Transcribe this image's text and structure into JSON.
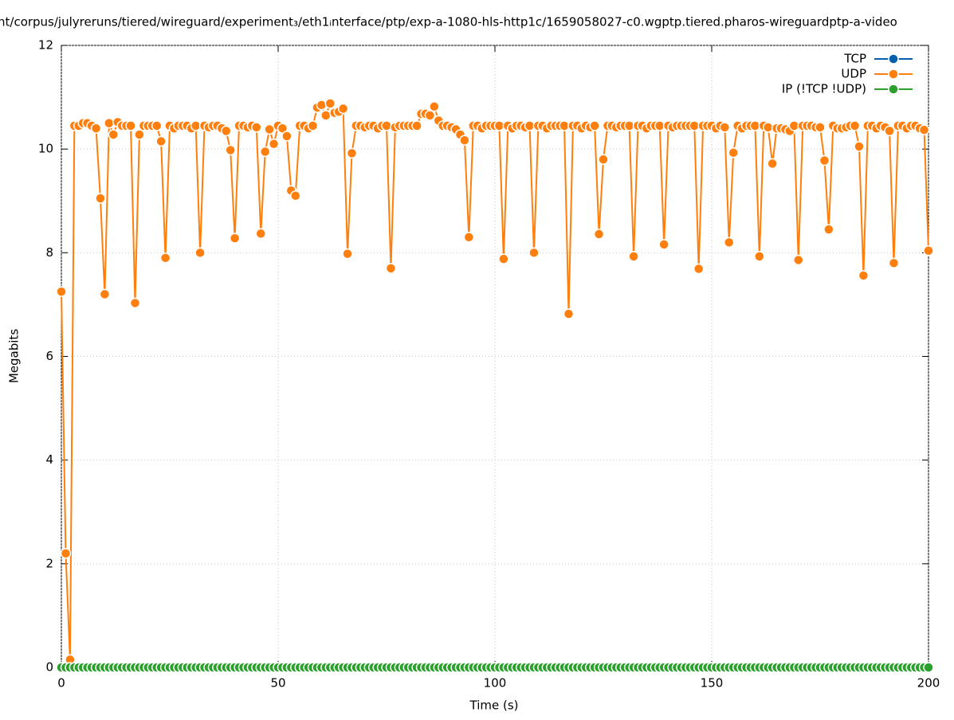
{
  "chart_data": {
    "type": "line",
    "title": "nt/corpus/julyreruns/tiered/wireguard/experiment₃/eth1ᵢnterface/ptp/exp-a-1080-hls-http1c/1659058027-c0.wgptp.tiered.pharos-wireguardptp-a-video",
    "x_label": "Time (s)",
    "y_label": "Megabits",
    "xlim": [
      0,
      200
    ],
    "xticks": [
      0,
      50,
      100,
      150,
      200
    ],
    "ylim": [
      0,
      12
    ],
    "yticks": [
      0,
      2,
      4,
      6,
      8,
      10,
      12
    ],
    "grid": true,
    "legend": "top-right",
    "x": [
      0,
      1,
      2,
      3,
      4,
      5,
      6,
      7,
      8,
      9,
      10,
      11,
      12,
      13,
      14,
      15,
      16,
      17,
      18,
      19,
      20,
      21,
      22,
      23,
      24,
      25,
      26,
      27,
      28,
      29,
      30,
      31,
      32,
      33,
      34,
      35,
      36,
      37,
      38,
      39,
      40,
      41,
      42,
      43,
      44,
      45,
      46,
      47,
      48,
      49,
      50,
      51,
      52,
      53,
      54,
      55,
      56,
      57,
      58,
      59,
      60,
      61,
      62,
      63,
      64,
      65,
      66,
      67,
      68,
      69,
      70,
      71,
      72,
      73,
      74,
      75,
      76,
      77,
      78,
      79,
      80,
      81,
      82,
      83,
      84,
      85,
      86,
      87,
      88,
      89,
      90,
      91,
      92,
      93,
      94,
      95,
      96,
      97,
      98,
      99,
      100,
      101,
      102,
      103,
      104,
      105,
      106,
      107,
      108,
      109,
      110,
      111,
      112,
      113,
      114,
      115,
      116,
      117,
      118,
      119,
      120,
      121,
      122,
      123,
      124,
      125,
      126,
      127,
      128,
      129,
      130,
      131,
      132,
      133,
      134,
      135,
      136,
      137,
      138,
      139,
      140,
      141,
      142,
      143,
      144,
      145,
      146,
      147,
      148,
      149,
      150,
      151,
      152,
      153,
      154,
      155,
      156,
      157,
      158,
      159,
      160,
      161,
      162,
      163,
      164,
      165,
      166,
      167,
      168,
      169,
      170,
      171,
      172,
      173,
      174,
      175,
      176,
      177,
      178,
      179,
      180,
      181,
      182,
      183,
      184,
      185,
      186,
      187,
      188,
      189,
      190,
      191,
      192,
      193,
      194,
      195,
      196,
      197,
      198,
      199,
      200
    ],
    "series": [
      {
        "name": "TCP",
        "color": "#0060ad",
        "values": [
          0,
          0,
          0,
          0,
          0,
          0,
          0,
          0,
          0,
          0,
          0,
          0,
          0,
          0,
          0,
          0,
          0,
          0,
          0,
          0,
          0,
          0,
          0,
          0,
          0,
          0,
          0,
          0,
          0,
          0,
          0,
          0,
          0,
          0,
          0,
          0,
          0,
          0,
          0,
          0,
          0,
          0,
          0,
          0,
          0,
          0,
          0,
          0,
          0,
          0,
          0,
          0,
          0,
          0,
          0,
          0,
          0,
          0,
          0,
          0,
          0,
          0,
          0,
          0,
          0,
          0,
          0,
          0,
          0,
          0,
          0,
          0,
          0,
          0,
          0,
          0,
          0,
          0,
          0,
          0,
          0,
          0,
          0,
          0,
          0,
          0,
          0,
          0,
          0,
          0,
          0,
          0,
          0,
          0,
          0,
          0,
          0,
          0,
          0,
          0,
          0,
          0,
          0,
          0,
          0,
          0,
          0,
          0,
          0,
          0,
          0,
          0,
          0,
          0,
          0,
          0,
          0,
          0,
          0,
          0,
          0,
          0,
          0,
          0,
          0,
          0,
          0,
          0,
          0,
          0,
          0,
          0,
          0,
          0,
          0,
          0,
          0,
          0,
          0,
          0,
          0,
          0,
          0,
          0,
          0,
          0,
          0,
          0,
          0,
          0,
          0,
          0,
          0,
          0,
          0,
          0,
          0,
          0,
          0,
          0,
          0,
          0,
          0,
          0,
          0,
          0,
          0,
          0,
          0,
          0,
          0,
          0,
          0,
          0,
          0,
          0,
          0,
          0,
          0,
          0,
          0,
          0,
          0,
          0,
          0,
          0,
          0,
          0,
          0,
          0,
          0,
          0,
          0,
          0,
          0,
          0,
          0,
          0,
          0,
          0,
          0
        ]
      },
      {
        "name": "UDP",
        "color": "#ff7f0e",
        "values": [
          7.25,
          2.2,
          0.15,
          10.45,
          10.45,
          10.5,
          10.5,
          10.45,
          10.4,
          9.05,
          7.2,
          10.5,
          10.28,
          10.52,
          10.45,
          10.45,
          10.45,
          7.03,
          10.28,
          10.45,
          10.45,
          10.45,
          10.45,
          10.15,
          7.9,
          10.45,
          10.4,
          10.45,
          10.45,
          10.45,
          10.4,
          10.45,
          8.0,
          10.45,
          10.42,
          10.45,
          10.45,
          10.4,
          10.35,
          9.98,
          8.28,
          10.45,
          10.45,
          10.42,
          10.45,
          10.42,
          8.37,
          9.95,
          10.38,
          10.1,
          10.45,
          10.4,
          10.25,
          9.2,
          9.1,
          10.45,
          10.45,
          10.4,
          10.45,
          10.8,
          10.85,
          10.65,
          10.88,
          10.7,
          10.72,
          10.78,
          7.98,
          9.92,
          10.45,
          10.45,
          10.42,
          10.45,
          10.45,
          10.4,
          10.45,
          10.45,
          7.7,
          10.42,
          10.45,
          10.45,
          10.45,
          10.45,
          10.45,
          10.68,
          10.68,
          10.65,
          10.82,
          10.55,
          10.45,
          10.45,
          10.42,
          10.38,
          10.28,
          10.17,
          8.3,
          10.45,
          10.45,
          10.4,
          10.45,
          10.45,
          10.45,
          10.45,
          7.88,
          10.45,
          10.4,
          10.45,
          10.45,
          10.42,
          10.45,
          8.0,
          10.45,
          10.45,
          10.4,
          10.45,
          10.45,
          10.45,
          10.45,
          6.82,
          10.45,
          10.45,
          10.4,
          10.45,
          10.42,
          10.45,
          8.36,
          9.8,
          10.45,
          10.45,
          10.42,
          10.45,
          10.45,
          10.45,
          7.93,
          10.45,
          10.45,
          10.4,
          10.45,
          10.45,
          10.45,
          8.16,
          10.45,
          10.42,
          10.45,
          10.45,
          10.45,
          10.45,
          10.45,
          7.69,
          10.45,
          10.45,
          10.45,
          10.4,
          10.45,
          10.42,
          8.2,
          9.93,
          10.45,
          10.4,
          10.45,
          10.45,
          10.45,
          7.93,
          10.45,
          10.42,
          9.72,
          10.4,
          10.4,
          10.38,
          10.35,
          10.45,
          7.86,
          10.45,
          10.45,
          10.45,
          10.42,
          10.42,
          9.78,
          8.45,
          10.45,
          10.4,
          10.4,
          10.42,
          10.45,
          10.45,
          10.05,
          7.56,
          10.45,
          10.45,
          10.4,
          10.45,
          10.42,
          10.35,
          7.8,
          10.45,
          10.45,
          10.4,
          10.45,
          10.45,
          10.4,
          10.37,
          8.04
        ]
      },
      {
        "name": "IP (!TCP  !UDP)",
        "color": "#2ca02c",
        "values": [
          0,
          0,
          0,
          0,
          0,
          0,
          0,
          0,
          0,
          0,
          0,
          0,
          0,
          0,
          0,
          0,
          0,
          0,
          0,
          0,
          0,
          0,
          0,
          0,
          0,
          0,
          0,
          0,
          0,
          0,
          0,
          0,
          0,
          0,
          0,
          0,
          0,
          0,
          0,
          0,
          0,
          0,
          0,
          0,
          0,
          0,
          0,
          0,
          0,
          0,
          0,
          0,
          0,
          0,
          0,
          0,
          0,
          0,
          0,
          0,
          0,
          0,
          0,
          0,
          0,
          0,
          0,
          0,
          0,
          0,
          0,
          0,
          0,
          0,
          0,
          0,
          0,
          0,
          0,
          0,
          0,
          0,
          0,
          0,
          0,
          0,
          0,
          0,
          0,
          0,
          0,
          0,
          0,
          0,
          0,
          0,
          0,
          0,
          0,
          0,
          0,
          0,
          0,
          0,
          0,
          0,
          0,
          0,
          0,
          0,
          0,
          0,
          0,
          0,
          0,
          0,
          0,
          0,
          0,
          0,
          0,
          0,
          0,
          0,
          0,
          0,
          0,
          0,
          0,
          0,
          0,
          0,
          0,
          0,
          0,
          0,
          0,
          0,
          0,
          0,
          0,
          0,
          0,
          0,
          0,
          0,
          0,
          0,
          0,
          0,
          0,
          0,
          0,
          0,
          0,
          0,
          0,
          0,
          0,
          0,
          0,
          0,
          0,
          0,
          0,
          0,
          0,
          0,
          0,
          0,
          0,
          0,
          0,
          0,
          0,
          0,
          0,
          0,
          0,
          0,
          0,
          0,
          0,
          0,
          0,
          0,
          0,
          0,
          0,
          0,
          0,
          0,
          0,
          0,
          0,
          0,
          0,
          0,
          0,
          0,
          0
        ]
      }
    ]
  }
}
